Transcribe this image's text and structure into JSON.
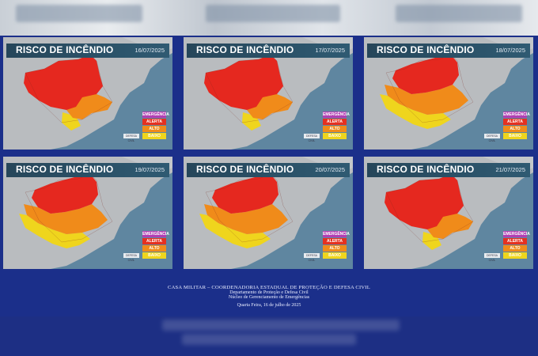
{
  "header": {
    "title": "RISCO DE INCÊNDIO"
  },
  "legend": {
    "items": [
      {
        "label": "EMERGÊNCIA",
        "color": "#b13fb3"
      },
      {
        "label": "ALERTA",
        "color": "#e53120"
      },
      {
        "label": "ALTO",
        "color": "#f08b1a"
      },
      {
        "label": "BAIXO",
        "color": "#efd51d"
      }
    ]
  },
  "panels": [
    {
      "date": "16/07/2025",
      "risk": "high"
    },
    {
      "date": "17/07/2025",
      "risk": "high"
    },
    {
      "date": "18/07/2025",
      "risk": "mixed"
    },
    {
      "date": "19/07/2025",
      "risk": "mixed2"
    },
    {
      "date": "20/07/2025",
      "risk": "mixed2"
    },
    {
      "date": "21/07/2025",
      "risk": "high2"
    }
  ],
  "logo_text": "DEFESA CIVIL",
  "footer": {
    "line1": "CASA MILITAR – COORDENADORIA ESTADUAL DE PROTEÇÃO E DEFESA CIVIL",
    "line2": "Departamento de Proteção e Defesa Civil",
    "line3": "Núcleo de Gerenciamento de Emergências",
    "date": "Quarta Feira, 16 de julho de 2025"
  }
}
